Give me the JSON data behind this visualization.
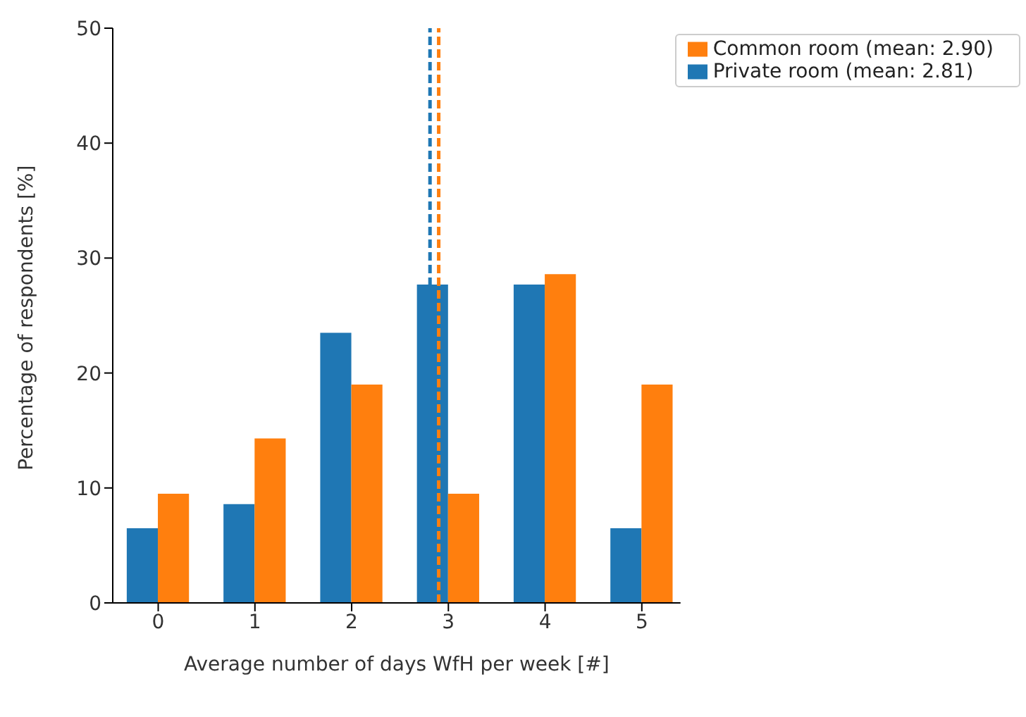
{
  "chart_data": {
    "type": "bar",
    "xlabel": "Average number of days WfH per week [#]",
    "ylabel": "Percentage of respondents [%]",
    "x": [
      0,
      1,
      2,
      3,
      4,
      5
    ],
    "series": [
      {
        "name": "Private room (mean: 2.81)",
        "color": "#1f77b4",
        "values": [
          6.5,
          8.6,
          23.5,
          27.7,
          27.7,
          6.5
        ]
      },
      {
        "name": "Common room (mean: 2.90)",
        "color": "#ff7f0e",
        "values": [
          9.5,
          14.3,
          19.0,
          9.5,
          28.6,
          19.0
        ]
      }
    ],
    "xlim": [
      -0.47,
      5.4
    ],
    "ylim": [
      0,
      50
    ],
    "xticks": [
      0,
      1,
      2,
      3,
      4,
      5
    ],
    "yticks": [
      0,
      10,
      20,
      30,
      40,
      50
    ],
    "ref_lines": [
      {
        "axis": "x",
        "value": 2.81,
        "color": "#1f77b4",
        "line_style": "dashed"
      },
      {
        "axis": "x",
        "value": 2.9,
        "color": "#ff7f0e",
        "line_style": "dashed"
      }
    ],
    "grid": false,
    "legend": "top right"
  }
}
